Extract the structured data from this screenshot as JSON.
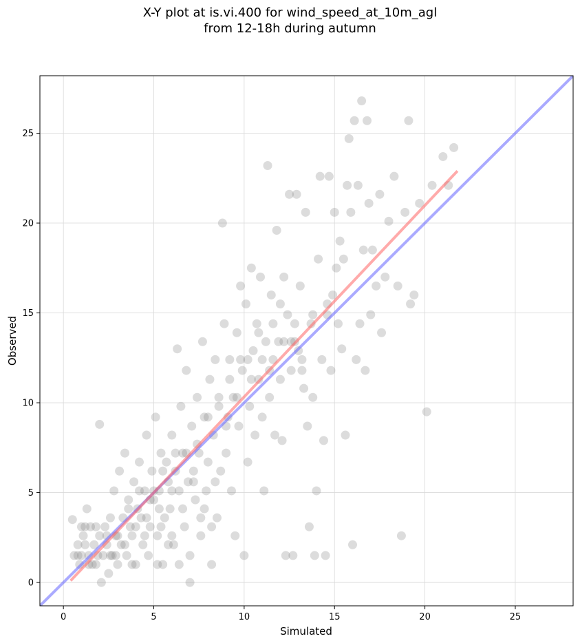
{
  "chart_data": {
    "type": "scatter",
    "title_line1": "X-Y plot at is.vi.400 for wind_speed_at_10m_agl",
    "title_line2": "from 12-18h during autumn",
    "xlabel": "Simulated",
    "ylabel": "Observed",
    "xlim": [
      -1.3,
      28.2
    ],
    "ylim": [
      -1.3,
      28.2
    ],
    "xticks": [
      0,
      5,
      10,
      15,
      20,
      25
    ],
    "yticks": [
      0,
      5,
      10,
      15,
      20,
      25
    ],
    "grid": true,
    "point_color": "#808080",
    "identity_line": {
      "color": "#6464ff",
      "from": [
        -1.3,
        -1.3
      ],
      "to": [
        28.2,
        28.2
      ]
    },
    "fit_line": {
      "color": "#ff6464",
      "from": [
        0.4,
        0.1
      ],
      "to": [
        21.8,
        22.9
      ]
    },
    "points": [
      [
        0.5,
        3.5
      ],
      [
        0.6,
        1.5
      ],
      [
        0.8,
        2.1
      ],
      [
        0.9,
        1.0
      ],
      [
        1.0,
        1.5
      ],
      [
        1.1,
        2.6
      ],
      [
        1.2,
        3.1
      ],
      [
        1.3,
        4.1
      ],
      [
        1.4,
        1.5
      ],
      [
        1.5,
        3.1
      ],
      [
        1.6,
        1.0
      ],
      [
        1.7,
        2.1
      ],
      [
        1.8,
        3.1
      ],
      [
        1.9,
        1.5
      ],
      [
        2.0,
        2.6
      ],
      [
        2.1,
        0.0
      ],
      [
        2.2,
        1.5
      ],
      [
        2.3,
        3.1
      ],
      [
        2.4,
        2.1
      ],
      [
        2.5,
        0.5
      ],
      [
        2.6,
        3.6
      ],
      [
        2.7,
        1.5
      ],
      [
        2.8,
        5.1
      ],
      [
        2.9,
        2.6
      ],
      [
        3.0,
        1.0
      ],
      [
        3.1,
        6.2
      ],
      [
        3.2,
        2.1
      ],
      [
        3.3,
        3.6
      ],
      [
        3.4,
        7.2
      ],
      [
        3.5,
        1.5
      ],
      [
        3.6,
        4.6
      ],
      [
        3.7,
        3.1
      ],
      [
        3.8,
        2.6
      ],
      [
        3.9,
        5.6
      ],
      [
        4.0,
        1.0
      ],
      [
        4.1,
        4.1
      ],
      [
        4.2,
        6.7
      ],
      [
        4.3,
        3.6
      ],
      [
        4.4,
        2.1
      ],
      [
        4.5,
        5.1
      ],
      [
        4.6,
        8.2
      ],
      [
        4.7,
        1.5
      ],
      [
        4.8,
        3.1
      ],
      [
        4.9,
        6.2
      ],
      [
        5.0,
        4.6
      ],
      [
        5.1,
        9.2
      ],
      [
        5.2,
        2.6
      ],
      [
        5.3,
        5.1
      ],
      [
        5.4,
        7.2
      ],
      [
        5.5,
        1.0
      ],
      [
        5.6,
        3.6
      ],
      [
        5.7,
        6.7
      ],
      [
        5.8,
        5.6
      ],
      [
        5.9,
        4.1
      ],
      [
        6.0,
        8.2
      ],
      [
        6.1,
        2.1
      ],
      [
        6.2,
        6.2
      ],
      [
        6.3,
        13.0
      ],
      [
        6.4,
        5.1
      ],
      [
        6.5,
        9.8
      ],
      [
        6.6,
        7.2
      ],
      [
        6.7,
        3.1
      ],
      [
        6.8,
        11.8
      ],
      [
        6.9,
        5.6
      ],
      [
        7.0,
        0.0
      ],
      [
        7.1,
        8.7
      ],
      [
        7.2,
        6.2
      ],
      [
        7.3,
        4.6
      ],
      [
        7.4,
        10.3
      ],
      [
        7.5,
        7.2
      ],
      [
        7.6,
        2.6
      ],
      [
        7.7,
        13.4
      ],
      [
        7.8,
        9.2
      ],
      [
        7.9,
        5.1
      ],
      [
        8.0,
        6.7
      ],
      [
        8.1,
        11.3
      ],
      [
        8.2,
        1.0
      ],
      [
        8.3,
        8.2
      ],
      [
        8.4,
        12.4
      ],
      [
        8.5,
        3.6
      ],
      [
        8.6,
        10.3
      ],
      [
        8.7,
        6.2
      ],
      [
        8.8,
        20.0
      ],
      [
        8.9,
        14.4
      ],
      [
        9.0,
        7.2
      ],
      [
        9.1,
        9.2
      ],
      [
        9.2,
        12.4
      ],
      [
        9.3,
        5.1
      ],
      [
        9.4,
        10.3
      ],
      [
        9.5,
        2.6
      ],
      [
        9.6,
        13.9
      ],
      [
        9.7,
        8.7
      ],
      [
        9.8,
        16.5
      ],
      [
        9.9,
        11.8
      ],
      [
        10.0,
        1.5
      ],
      [
        10.1,
        15.5
      ],
      [
        10.2,
        6.7
      ],
      [
        10.3,
        9.8
      ],
      [
        10.4,
        17.5
      ],
      [
        10.5,
        12.9
      ],
      [
        10.6,
        8.2
      ],
      [
        10.7,
        14.4
      ],
      [
        10.8,
        11.3
      ],
      [
        10.9,
        17.0
      ],
      [
        11.0,
        9.2
      ],
      [
        11.1,
        5.1
      ],
      [
        11.2,
        13.4
      ],
      [
        11.3,
        23.2
      ],
      [
        11.4,
        10.3
      ],
      [
        11.5,
        16.0
      ],
      [
        11.6,
        12.4
      ],
      [
        11.7,
        8.2
      ],
      [
        11.8,
        19.6
      ],
      [
        11.9,
        13.4
      ],
      [
        12.0,
        11.3
      ],
      [
        12.1,
        7.9
      ],
      [
        12.2,
        17.0
      ],
      [
        12.3,
        1.5
      ],
      [
        12.4,
        14.9
      ],
      [
        12.5,
        21.6
      ],
      [
        12.6,
        11.8
      ],
      [
        12.7,
        1.5
      ],
      [
        12.8,
        13.4
      ],
      [
        12.9,
        21.6
      ],
      [
        13.0,
        12.9
      ],
      [
        13.1,
        16.5
      ],
      [
        13.2,
        11.8
      ],
      [
        13.3,
        10.8
      ],
      [
        13.4,
        20.6
      ],
      [
        13.5,
        8.7
      ],
      [
        13.6,
        3.1
      ],
      [
        13.7,
        14.4
      ],
      [
        13.8,
        10.3
      ],
      [
        13.9,
        1.5
      ],
      [
        14.0,
        5.1
      ],
      [
        14.1,
        18.0
      ],
      [
        14.2,
        22.6
      ],
      [
        14.3,
        12.4
      ],
      [
        14.4,
        7.9
      ],
      [
        14.5,
        1.5
      ],
      [
        14.6,
        14.9
      ],
      [
        14.7,
        22.6
      ],
      [
        14.8,
        11.8
      ],
      [
        14.9,
        16.0
      ],
      [
        15.0,
        20.6
      ],
      [
        15.1,
        17.5
      ],
      [
        15.2,
        14.4
      ],
      [
        15.3,
        19.0
      ],
      [
        15.4,
        13.0
      ],
      [
        15.5,
        18.0
      ],
      [
        15.6,
        8.2
      ],
      [
        15.7,
        22.1
      ],
      [
        15.8,
        24.7
      ],
      [
        15.9,
        20.6
      ],
      [
        16.0,
        2.1
      ],
      [
        16.1,
        25.7
      ],
      [
        16.2,
        12.4
      ],
      [
        16.3,
        22.1
      ],
      [
        16.4,
        14.4
      ],
      [
        16.5,
        26.8
      ],
      [
        16.6,
        18.5
      ],
      [
        16.7,
        11.8
      ],
      [
        16.8,
        25.7
      ],
      [
        16.9,
        21.1
      ],
      [
        17.0,
        14.9
      ],
      [
        17.1,
        18.5
      ],
      [
        17.3,
        16.5
      ],
      [
        17.5,
        21.6
      ],
      [
        17.6,
        13.9
      ],
      [
        17.8,
        17.0
      ],
      [
        18.0,
        20.1
      ],
      [
        18.3,
        22.6
      ],
      [
        18.5,
        16.5
      ],
      [
        18.7,
        2.6
      ],
      [
        18.9,
        20.6
      ],
      [
        19.1,
        25.7
      ],
      [
        19.2,
        15.5
      ],
      [
        19.4,
        16.0
      ],
      [
        19.7,
        21.1
      ],
      [
        20.1,
        9.5
      ],
      [
        20.4,
        22.1
      ],
      [
        21.0,
        23.7
      ],
      [
        21.3,
        22.1
      ],
      [
        21.6,
        24.2
      ],
      [
        2.0,
        8.8
      ],
      [
        1.0,
        3.1
      ],
      [
        1.4,
        1.0
      ],
      [
        2.6,
        1.5
      ],
      [
        3.0,
        2.6
      ],
      [
        3.8,
        1.0
      ],
      [
        4.5,
        2.6
      ],
      [
        5.2,
        1.0
      ],
      [
        5.8,
        2.1
      ],
      [
        6.4,
        1.0
      ],
      [
        7.0,
        1.5
      ],
      [
        7.6,
        3.6
      ],
      [
        8.2,
        3.1
      ],
      [
        0.8,
        1.5
      ],
      [
        1.2,
        2.1
      ],
      [
        1.8,
        1.0
      ],
      [
        2.4,
        2.6
      ],
      [
        2.9,
        1.5
      ],
      [
        3.4,
        2.1
      ],
      [
        4.0,
        3.1
      ],
      [
        4.6,
        3.6
      ],
      [
        5.4,
        3.1
      ],
      [
        6.0,
        2.6
      ],
      [
        6.6,
        4.1
      ],
      [
        7.2,
        5.6
      ],
      [
        7.8,
        4.1
      ],
      [
        8.4,
        5.6
      ],
      [
        9.0,
        8.7
      ],
      [
        9.6,
        10.3
      ],
      [
        10.2,
        12.4
      ],
      [
        10.8,
        13.9
      ],
      [
        11.4,
        11.8
      ],
      [
        12.0,
        15.5
      ],
      [
        12.6,
        13.4
      ],
      [
        13.2,
        12.4
      ],
      [
        3.6,
        4.1
      ],
      [
        4.2,
        5.1
      ],
      [
        4.8,
        4.6
      ],
      [
        5.5,
        6.2
      ],
      [
        6.2,
        7.2
      ],
      [
        6.8,
        7.2
      ],
      [
        7.4,
        7.7
      ],
      [
        8.0,
        9.2
      ],
      [
        8.6,
        9.8
      ],
      [
        9.2,
        11.3
      ],
      [
        9.8,
        12.4
      ],
      [
        10.4,
        11.3
      ],
      [
        11.0,
        12.4
      ],
      [
        11.6,
        14.4
      ],
      [
        12.2,
        13.4
      ],
      [
        12.8,
        14.4
      ],
      [
        13.8,
        14.9
      ],
      [
        14.6,
        15.5
      ],
      [
        6.0,
        5.1
      ],
      [
        5.0,
        5.1
      ],
      [
        5.3,
        4.1
      ]
    ]
  }
}
